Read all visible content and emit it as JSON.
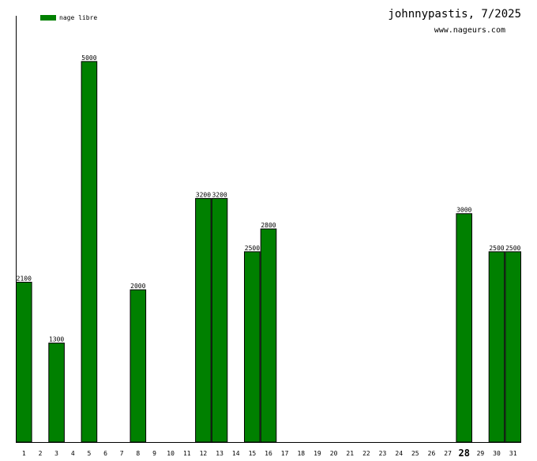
{
  "header": {
    "title": "johnnypastis, 7/2025",
    "subtitle": "www.nageurs.com"
  },
  "legend": {
    "label": "nage libre",
    "color": "#008000"
  },
  "colors": {
    "bar": "#008000",
    "bar_outline": "#000000",
    "axis": "#000000",
    "text": "#000000"
  },
  "chart_data": {
    "type": "bar",
    "title": "johnnypastis, 7/2025",
    "xlabel": "",
    "ylabel": "",
    "ylim": [
      0,
      5600
    ],
    "grid": false,
    "legend_position": "top-left",
    "highlight_category": "28",
    "categories": [
      "1",
      "2",
      "3",
      "4",
      "5",
      "6",
      "7",
      "8",
      "9",
      "10",
      "11",
      "12",
      "13",
      "14",
      "15",
      "16",
      "17",
      "18",
      "19",
      "20",
      "21",
      "22",
      "23",
      "24",
      "25",
      "26",
      "27",
      "28",
      "29",
      "30",
      "31"
    ],
    "series": [
      {
        "name": "nage libre",
        "values": [
          2100,
          0,
          1300,
          0,
          5000,
          0,
          0,
          2000,
          0,
          0,
          0,
          3200,
          3200,
          0,
          2500,
          2800,
          0,
          0,
          0,
          0,
          0,
          0,
          0,
          0,
          0,
          0,
          0,
          3000,
          0,
          2500,
          2500
        ]
      }
    ]
  }
}
